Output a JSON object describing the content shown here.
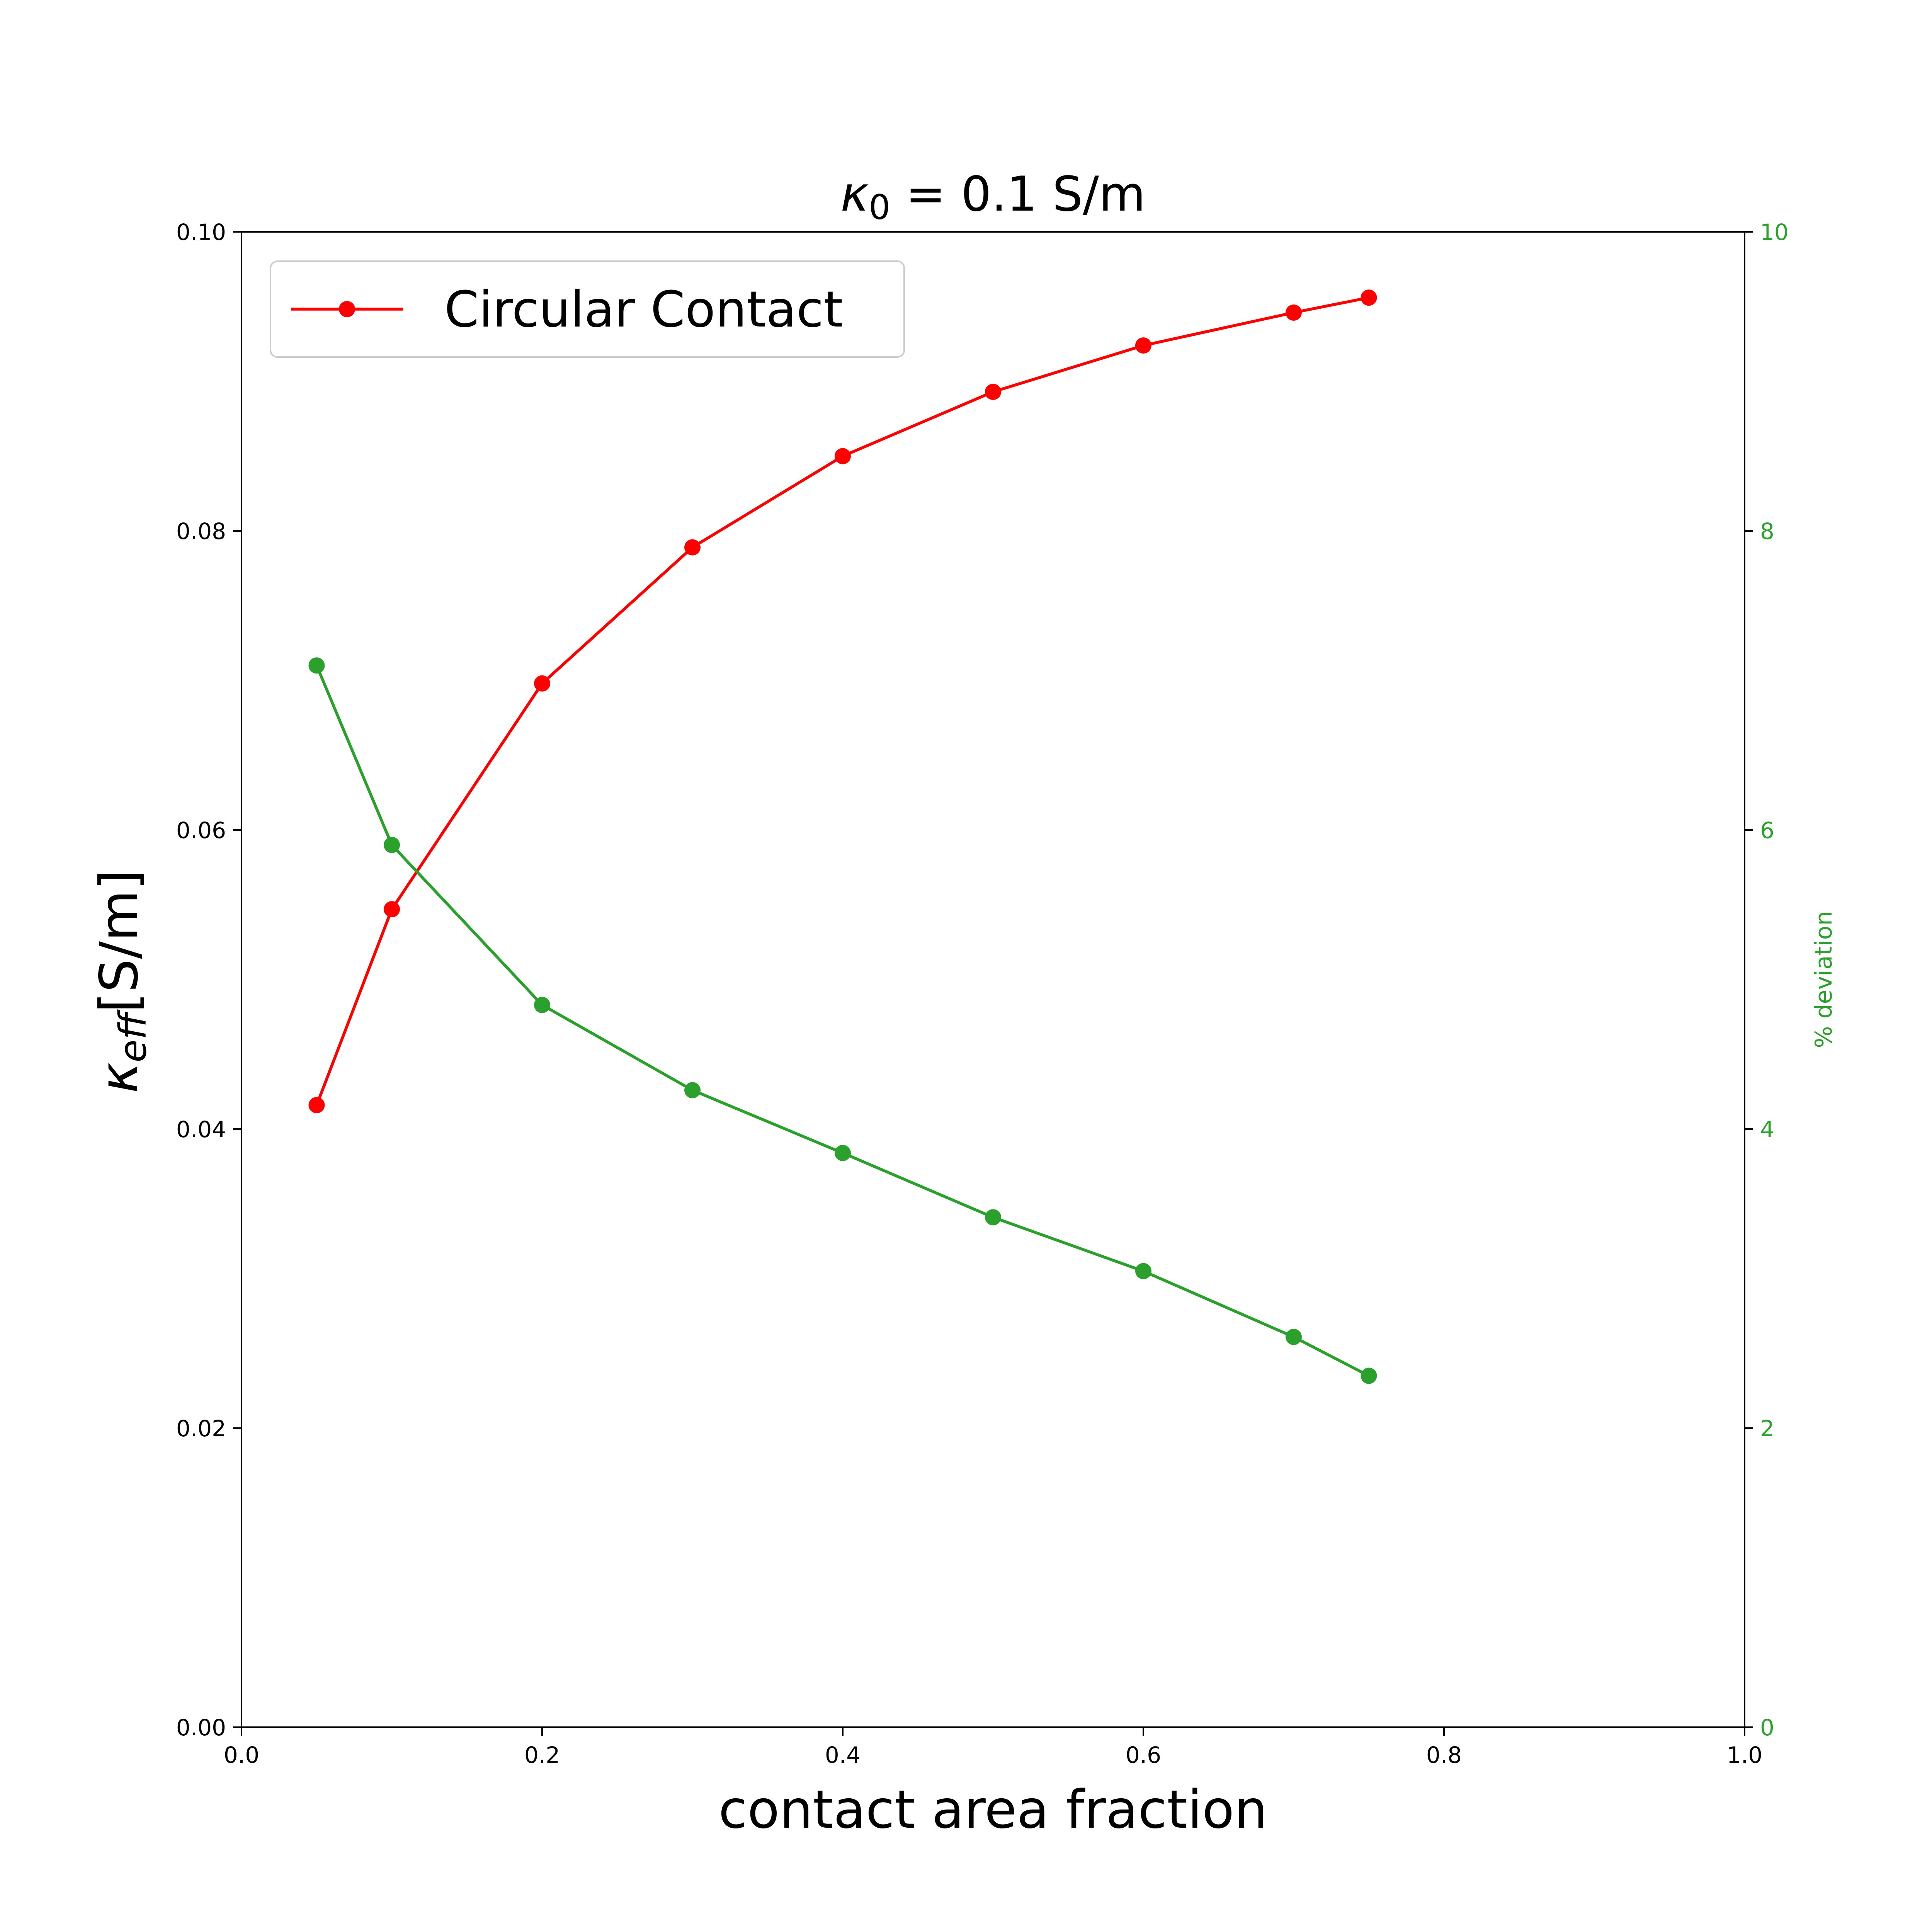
{
  "chart_data": {
    "type": "line",
    "title": {
      "symbol": "κ",
      "sub": "0",
      "rest": " = 0.1 S/m"
    },
    "xlabel": "contact area fraction",
    "ylabel": {
      "symbol": "κ",
      "sub": "eff",
      "rest": "[S/m]"
    },
    "y2label": "% deviation",
    "xlim": [
      0.0,
      1.0
    ],
    "ylim": [
      0.0,
      0.1
    ],
    "y2lim": [
      0,
      10
    ],
    "xticks": [
      "0.0",
      "0.2",
      "0.4",
      "0.6",
      "0.8",
      "1.0"
    ],
    "yticks": [
      "0.00",
      "0.02",
      "0.04",
      "0.06",
      "0.08",
      "0.10"
    ],
    "y2ticks": [
      "0",
      "2",
      "4",
      "6",
      "8",
      "10"
    ],
    "grid": false,
    "legend_position": "top-left",
    "x": [
      0.05,
      0.1,
      0.2,
      0.3,
      0.4,
      0.5,
      0.6,
      0.7,
      0.75
    ],
    "series": [
      {
        "name": "Circular Contact",
        "axis": "left",
        "color": "#ff0000",
        "values": [
          0.0416,
          0.0547,
          0.0698,
          0.0789,
          0.085,
          0.0893,
          0.0924,
          0.0946,
          0.0956
        ]
      },
      {
        "axis": "right",
        "color": "#2ca02c",
        "values": [
          7.1,
          5.9,
          4.83,
          4.26,
          3.84,
          3.41,
          3.05,
          2.61,
          2.35
        ]
      }
    ]
  }
}
